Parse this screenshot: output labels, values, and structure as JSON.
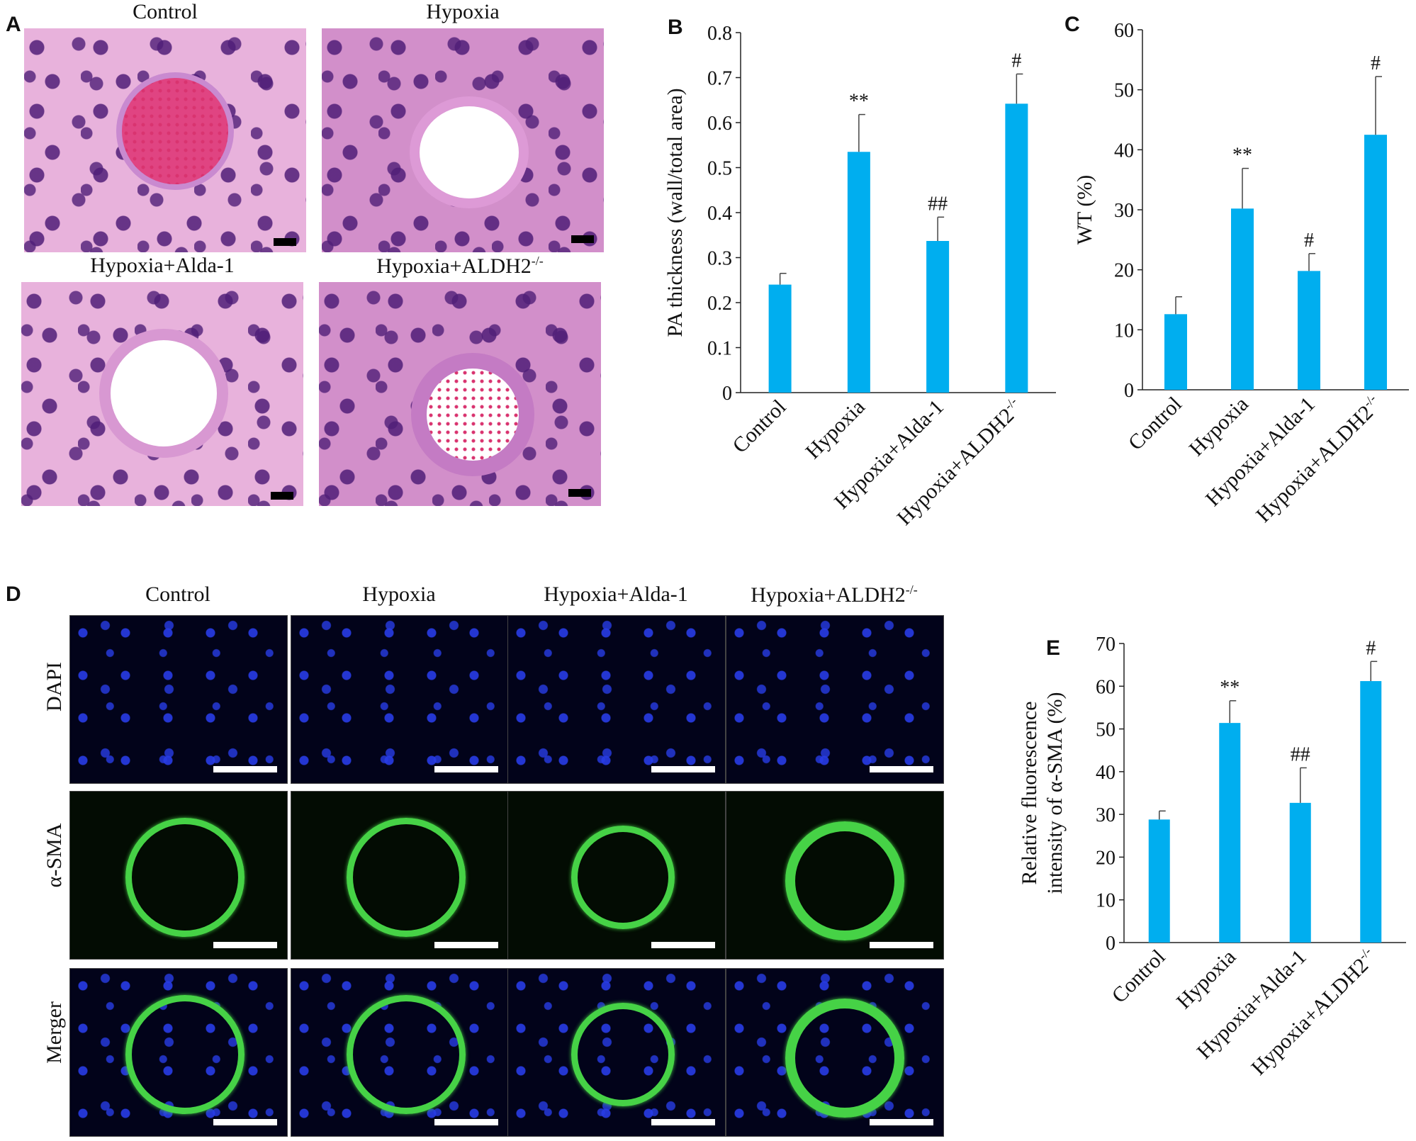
{
  "panel_letters": {
    "a": "A",
    "b": "B",
    "c": "C",
    "d": "D",
    "e": "E"
  },
  "panel_a": {
    "captions": [
      "Control",
      "Hypoxia",
      "Hypoxia+Alda-1",
      "Hypoxia+ALDH2"
    ],
    "superscript": "-/-"
  },
  "panel_d": {
    "column_headers": [
      "Control",
      "Hypoxia",
      "Hypoxia+Alda-1",
      "Hypoxia+ALDH2"
    ],
    "superscript": "-/-",
    "row_labels": [
      "DAPI",
      "α-SMA",
      "Merger"
    ]
  },
  "chart_data": [
    {
      "panel": "B",
      "type": "bar",
      "categories": [
        "Control",
        "Hypoxia",
        "Hypoxia+Alda-1",
        "Hypoxia+ALDH2-/-"
      ],
      "values": [
        0.24,
        0.535,
        0.337,
        0.642
      ],
      "errors": [
        0.025,
        0.083,
        0.053,
        0.066
      ],
      "annotations": [
        "",
        "**",
        "##",
        "#"
      ],
      "ylabel": "PA thickness (wall/total area)",
      "ylim": [
        0,
        0.8
      ],
      "yticks": [
        0,
        0.1,
        0.2,
        0.3,
        0.4,
        0.5,
        0.6,
        0.7,
        0.8
      ],
      "ytick_labels": [
        "0",
        "0.1",
        "0.2",
        "0.3",
        "0.4",
        "0.5",
        "0.6",
        "0.7",
        "0.8"
      ],
      "bar_color": "#00aeef"
    },
    {
      "panel": "C",
      "type": "bar",
      "categories": [
        "Control",
        "Hypoxia",
        "Hypoxia+Alda-1",
        "Hypoxia+ALDH2-/-"
      ],
      "values": [
        12.6,
        30.2,
        19.8,
        42.5
      ],
      "errors": [
        2.9,
        6.7,
        2.9,
        9.7
      ],
      "annotations": [
        "",
        "**",
        "#",
        "#"
      ],
      "ylabel": "WT (%)",
      "ylim": [
        0,
        60
      ],
      "yticks": [
        0,
        10,
        20,
        30,
        40,
        50,
        60
      ],
      "ytick_labels": [
        "0",
        "10",
        "20",
        "30",
        "40",
        "50",
        "60"
      ],
      "bar_color": "#00aeef"
    },
    {
      "panel": "E",
      "type": "bar",
      "categories": [
        "Control",
        "Hypoxia",
        "Hypoxia+Alda-1",
        "Hypoxia+ALDH2-/-"
      ],
      "values": [
        28.8,
        51.4,
        32.7,
        61.2
      ],
      "errors": [
        2.0,
        5.2,
        8.2,
        4.6
      ],
      "annotations": [
        "",
        "**",
        "##",
        "#"
      ],
      "ylabel": "Relative fluorescence intensity of α-SMA (%)",
      "ylabel_lines": [
        "Relative fluorescence",
        "intensity of α-SMA (%)"
      ],
      "ylim": [
        0,
        70
      ],
      "yticks": [
        0,
        10,
        20,
        30,
        40,
        50,
        60,
        70
      ],
      "ytick_labels": [
        "0",
        "10",
        "20",
        "30",
        "40",
        "50",
        "60",
        "70"
      ],
      "bar_color": "#00aeef"
    }
  ],
  "colors": {
    "bar": "#00aeef",
    "he_tissue": "#e8b2dc",
    "dapi": "#2a3ce6",
    "sma": "#46d246"
  }
}
